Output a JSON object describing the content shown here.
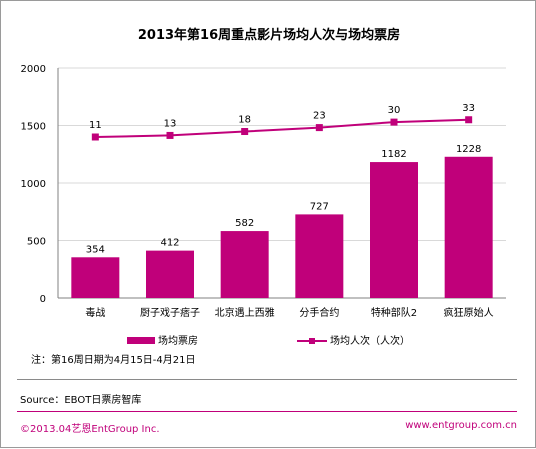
{
  "title": "2013年第16周重点影片场均人次与场均票房",
  "note": "注：第16周日期为4月15日-4月21日",
  "source": "Source：EBOT日票房智库",
  "copyright": "©2013.04艺恩EntGroup Inc.",
  "website": "www.entgroup.com.cn",
  "chart_data": {
    "type": "bar",
    "categories": [
      "毒战",
      "厨子戏子痞子",
      "北京遇上西雅",
      "分手合约",
      "特种部队2",
      "疯狂原始人"
    ],
    "series": [
      {
        "name": "场均票房",
        "type": "bar",
        "values": [
          354,
          412,
          582,
          727,
          1182,
          1228
        ],
        "color": "#c0007a"
      },
      {
        "name": "场均人次（人次）",
        "type": "line",
        "values": [
          11,
          13,
          18,
          23,
          30,
          33
        ],
        "color": "#c0007a"
      }
    ],
    "ylim": [
      0,
      2000
    ],
    "yticks": [
      0,
      500,
      1000,
      1500,
      2000
    ],
    "grid": true,
    "legend": "bottom",
    "xlabel": "",
    "ylabel": ""
  }
}
